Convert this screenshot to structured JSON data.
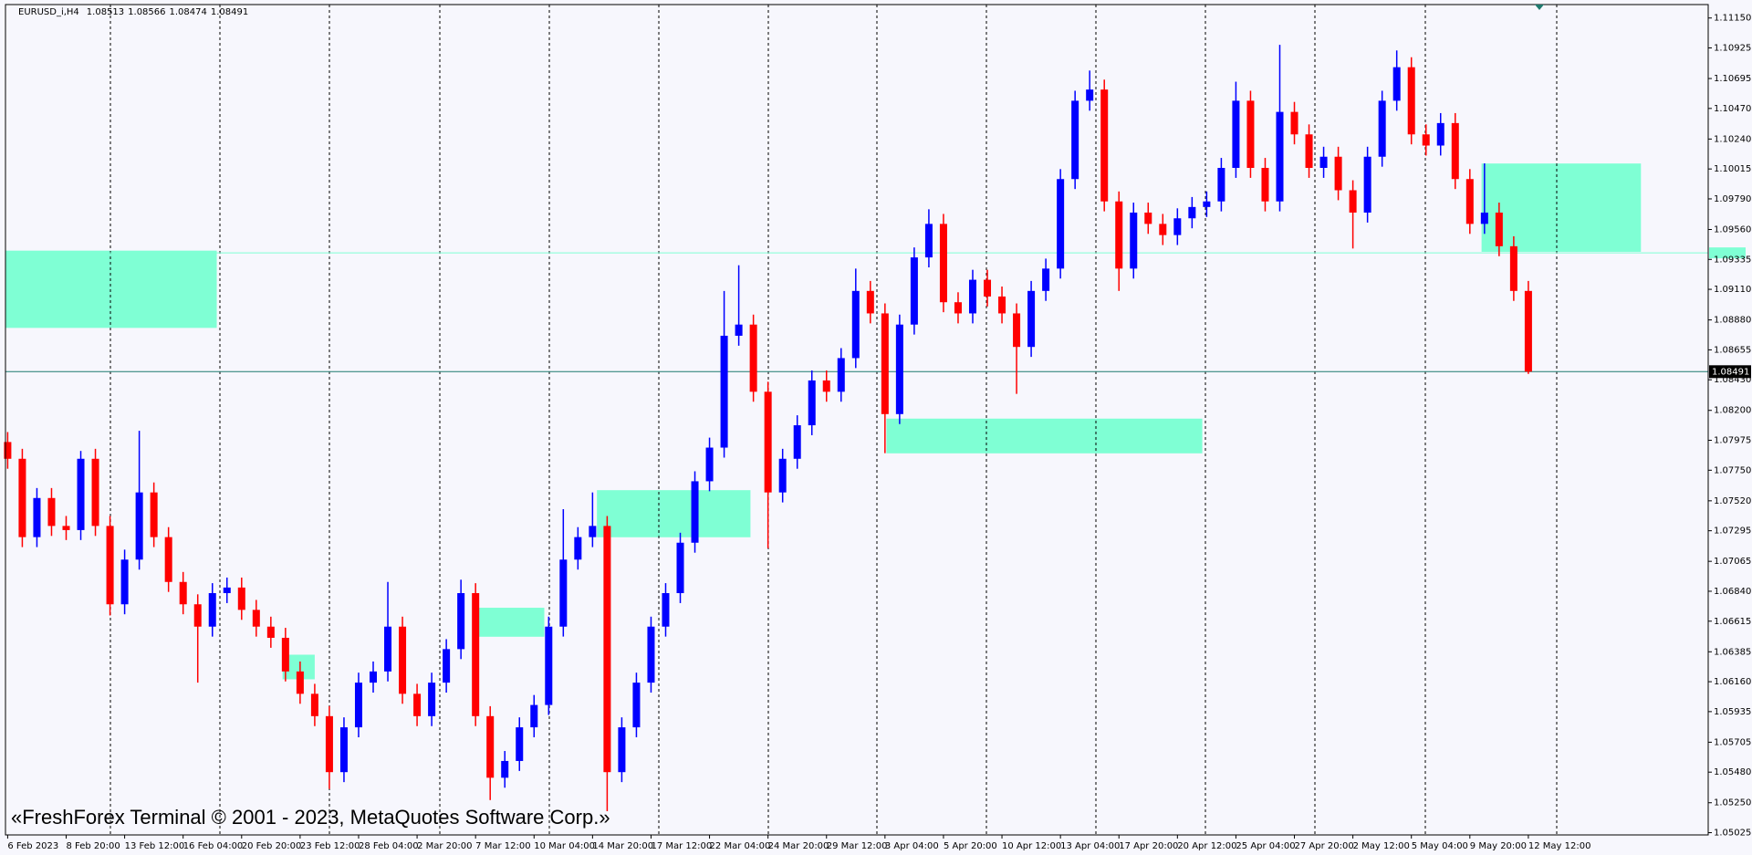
{
  "chart_data": {
    "type": "candlestick",
    "title": "EURUSD_i,H4",
    "header_values": [
      1.08513,
      1.08566,
      1.08474,
      1.08491
    ],
    "up_color": "#0000ff",
    "down_color": "#ff0000",
    "xlim": [
      -0.15,
      116.3
    ],
    "ylim": [
      1.05008,
      1.11251
    ],
    "open": [
      1.07962,
      1.07836,
      1.07247,
      1.07541,
      1.07331,
      1.073,
      1.07836,
      1.07331,
      1.06742,
      1.07078,
      1.07583,
      1.07247,
      1.0691,
      1.06742,
      1.06574,
      1.06826,
      1.06868,
      1.067,
      1.06574,
      1.0649,
      1.06237,
      1.06069,
      1.05901,
      1.0548,
      1.05817,
      1.06153,
      1.06237,
      1.06574,
      1.06069,
      1.05901,
      1.06153,
      1.06405,
      1.06826,
      1.05901,
      1.05438,
      1.05564,
      1.05817,
      1.05985,
      1.06574,
      1.07078,
      1.07247,
      1.07331,
      1.0548,
      1.05817,
      1.06153,
      1.06574,
      1.06826,
      1.07205,
      1.07667,
      1.0792,
      1.08761,
      1.08845,
      1.0834,
      1.07583,
      1.07836,
      1.08088,
      1.08425,
      1.0834,
      1.08593,
      1.09098,
      1.08929,
      1.08172,
      1.08845,
      1.0935,
      1.09602,
      1.09013,
      1.08929,
      1.09182,
      1.09056,
      1.08929,
      1.08677,
      1.09098,
      1.09266,
      1.09939,
      1.10528,
      1.10612,
      1.09771,
      1.09266,
      1.09687,
      1.09602,
      1.09518,
      1.09644,
      1.09729,
      1.09771,
      1.10023,
      1.10528,
      1.10023,
      1.09771,
      1.10444,
      1.10275,
      1.10023,
      1.10107,
      1.09855,
      1.09687,
      1.10107,
      1.10528,
      1.1078,
      1.10275,
      1.10191,
      1.1036,
      1.09939,
      1.09602,
      1.09687,
      1.09434,
      1.09098
    ],
    "high": [
      1.08037,
      1.07911,
      1.07616,
      1.07616,
      1.07406,
      1.07895,
      1.07911,
      1.07406,
      1.07153,
      1.08046,
      1.07658,
      1.07322,
      1.06985,
      1.06817,
      1.06901,
      1.06943,
      1.06943,
      1.06775,
      1.06649,
      1.06565,
      1.06312,
      1.06144,
      1.05976,
      1.05892,
      1.06228,
      1.06312,
      1.0691,
      1.06649,
      1.06144,
      1.06228,
      1.0648,
      1.06927,
      1.06901,
      1.05976,
      1.05639,
      1.05892,
      1.0606,
      1.06649,
      1.07457,
      1.07322,
      1.07583,
      1.07406,
      1.05892,
      1.06228,
      1.06649,
      1.06901,
      1.0728,
      1.07742,
      1.07995,
      1.09098,
      1.09291,
      1.0892,
      1.08415,
      1.07911,
      1.08163,
      1.085,
      1.085,
      1.08668,
      1.09266,
      1.09173,
      1.09004,
      1.0892,
      1.09425,
      1.09712,
      1.09677,
      1.09088,
      1.09257,
      1.09257,
      1.09131,
      1.09004,
      1.09173,
      1.09341,
      1.10014,
      1.10603,
      1.10755,
      1.10687,
      1.09846,
      1.09762,
      1.09762,
      1.09677,
      1.09719,
      1.09804,
      1.09846,
      1.10098,
      1.10671,
      1.10603,
      1.10098,
      1.10948,
      1.10519,
      1.1035,
      1.10182,
      1.10182,
      1.0993,
      1.10182,
      1.10603,
      1.10906,
      1.10855,
      1.1035,
      1.10435,
      1.10435,
      1.10014,
      1.10057,
      1.09762,
      1.09509,
      1.09173
    ],
    "low": [
      1.07761,
      1.07172,
      1.07172,
      1.07256,
      1.07225,
      1.07225,
      1.07256,
      1.06658,
      1.06667,
      1.07003,
      1.07172,
      1.06835,
      1.06667,
      1.06153,
      1.06499,
      1.06751,
      1.06625,
      1.06499,
      1.06415,
      1.06162,
      1.05994,
      1.05826,
      1.05354,
      1.05405,
      1.05742,
      1.06078,
      1.06162,
      1.05994,
      1.05826,
      1.05826,
      1.06078,
      1.0633,
      1.05826,
      1.0527,
      1.05363,
      1.05489,
      1.05742,
      1.0591,
      1.06499,
      1.07003,
      1.07172,
      1.05186,
      1.05405,
      1.05742,
      1.06078,
      1.06499,
      1.06751,
      1.0713,
      1.07592,
      1.07845,
      1.08686,
      1.08265,
      1.07163,
      1.07508,
      1.07761,
      1.08013,
      1.08265,
      1.08265,
      1.08518,
      1.08854,
      1.07878,
      1.08097,
      1.0877,
      1.09275,
      1.08938,
      1.08854,
      1.08854,
      1.08981,
      1.08854,
      1.08324,
      1.08602,
      1.09023,
      1.09191,
      1.09864,
      1.10453,
      1.09696,
      1.09098,
      1.09191,
      1.09527,
      1.09443,
      1.09443,
      1.09569,
      1.09654,
      1.09696,
      1.09948,
      1.09948,
      1.09696,
      1.09696,
      1.102,
      1.09948,
      1.09948,
      1.0978,
      1.09417,
      1.09612,
      1.10032,
      1.10453,
      1.102,
      1.10116,
      1.10116,
      1.09864,
      1.09527,
      1.09527,
      1.09359,
      1.09023,
      1.08474
    ],
    "close": [
      1.07836,
      1.07247,
      1.07541,
      1.07331,
      1.073,
      1.07836,
      1.07331,
      1.06742,
      1.07078,
      1.07583,
      1.07247,
      1.0691,
      1.06742,
      1.06574,
      1.06826,
      1.06868,
      1.067,
      1.06574,
      1.0649,
      1.06237,
      1.06069,
      1.05901,
      1.0548,
      1.05817,
      1.06153,
      1.06237,
      1.06574,
      1.06069,
      1.05901,
      1.06153,
      1.06405,
      1.06826,
      1.05901,
      1.05438,
      1.05564,
      1.05817,
      1.05985,
      1.06574,
      1.07078,
      1.07247,
      1.07331,
      1.0548,
      1.05817,
      1.06153,
      1.06574,
      1.06826,
      1.07205,
      1.07667,
      1.0792,
      1.08761,
      1.08845,
      1.0834,
      1.07583,
      1.07836,
      1.08088,
      1.08425,
      1.0834,
      1.08593,
      1.09098,
      1.08929,
      1.08172,
      1.08845,
      1.0935,
      1.09602,
      1.09013,
      1.08929,
      1.09182,
      1.09056,
      1.08929,
      1.08677,
      1.09098,
      1.09266,
      1.09939,
      1.10528,
      1.10612,
      1.09771,
      1.09266,
      1.09687,
      1.09602,
      1.09518,
      1.09644,
      1.09729,
      1.09771,
      1.10023,
      1.10528,
      1.10023,
      1.09771,
      1.10444,
      1.10275,
      1.10023,
      1.10107,
      1.09855,
      1.09687,
      1.10107,
      1.10528,
      1.1078,
      1.10275,
      1.10191,
      1.1036,
      1.09939,
      1.09602,
      1.09687,
      1.09434,
      1.09098,
      1.08491
    ],
    "xticks": [
      {
        "value": 0,
        "label": "6 Feb 2023"
      },
      {
        "value": 4,
        "label": "8 Feb 20:00"
      },
      {
        "value": 8,
        "label": "13 Feb 12:00"
      },
      {
        "value": 12,
        "label": "16 Feb 04:00"
      },
      {
        "value": 16,
        "label": "20 Feb 20:00"
      },
      {
        "value": 20,
        "label": "23 Feb 12:00"
      },
      {
        "value": 24,
        "label": "28 Feb 04:00"
      },
      {
        "value": 28,
        "label": "2 Mar 20:00"
      },
      {
        "value": 32,
        "label": "7 Mar 12:00"
      },
      {
        "value": 36,
        "label": "10 Mar 04:00"
      },
      {
        "value": 40,
        "label": "14 Mar 20:00"
      },
      {
        "value": 44,
        "label": "17 Mar 12:00"
      },
      {
        "value": 48,
        "label": "22 Mar 04:00"
      },
      {
        "value": 52,
        "label": "24 Mar 20:00"
      },
      {
        "value": 56,
        "label": "29 Mar 12:00"
      },
      {
        "value": 60,
        "label": "3 Apr 04:00"
      },
      {
        "value": 64,
        "label": "5 Apr 20:00"
      },
      {
        "value": 68,
        "label": "10 Apr 12:00"
      },
      {
        "value": 72,
        "label": "13 Apr 04:00"
      },
      {
        "value": 76,
        "label": "17 Apr 20:00"
      },
      {
        "value": 80,
        "label": "20 Apr 12:00"
      },
      {
        "value": 84,
        "label": "25 Apr 04:00"
      },
      {
        "value": 88,
        "label": "27 Apr 20:00"
      },
      {
        "value": 92,
        "label": "2 May 12:00"
      },
      {
        "value": 96,
        "label": "5 May 04:00"
      },
      {
        "value": 100,
        "label": "9 May 20:00"
      },
      {
        "value": 104,
        "label": "12 May 12:00"
      }
    ],
    "yticks": [
      {
        "value": 1.1115,
        "label": "1.11150"
      },
      {
        "value": 1.10925,
        "label": "1.10925"
      },
      {
        "value": 1.10695,
        "label": "1.10695"
      },
      {
        "value": 1.1047,
        "label": "1.10470"
      },
      {
        "value": 1.1024,
        "label": "1.10240"
      },
      {
        "value": 1.10015,
        "label": "1.10015"
      },
      {
        "value": 1.0979,
        "label": "1.09790"
      },
      {
        "value": 1.0956,
        "label": "1.09560"
      },
      {
        "value": 1.09335,
        "label": "1.09335"
      },
      {
        "value": 1.0911,
        "label": "1.09110"
      },
      {
        "value": 1.0888,
        "label": "1.08880"
      },
      {
        "value": 1.08655,
        "label": "1.08655"
      },
      {
        "value": 1.0843,
        "label": "1.08430"
      },
      {
        "value": 1.082,
        "label": "1.08200"
      },
      {
        "value": 1.07975,
        "label": "1.07975"
      },
      {
        "value": 1.0775,
        "label": "1.07750"
      },
      {
        "value": 1.0752,
        "label": "1.07520"
      },
      {
        "value": 1.07295,
        "label": "1.07295"
      },
      {
        "value": 1.07065,
        "label": "1.07065"
      },
      {
        "value": 1.0684,
        "label": "1.06840"
      },
      {
        "value": 1.06615,
        "label": "1.06615"
      },
      {
        "value": 1.06385,
        "label": "1.06385"
      },
      {
        "value": 1.0616,
        "label": "1.06160"
      },
      {
        "value": 1.05935,
        "label": "1.05935"
      },
      {
        "value": 1.05705,
        "label": "1.05705"
      },
      {
        "value": 1.0548,
        "label": "1.05480"
      },
      {
        "value": 1.0525,
        "label": "1.05250"
      },
      {
        "value": 1.05025,
        "label": "1.05025"
      }
    ],
    "current_price": 1.08491,
    "current_price_color": "#1f7a6e",
    "level": 1.09384,
    "level_color": "#7fffd4",
    "zone_color": "#7fffd4",
    "zones": [
      {
        "x": [
          -0.15,
          14.3
        ],
        "y": [
          1.0882,
          1.09401
        ]
      },
      {
        "x": [
          18.8,
          21.0
        ],
        "y": [
          1.06178,
          1.06363
        ]
      },
      {
        "x": [
          31.9,
          36.7
        ],
        "y": [
          1.06498,
          1.06716
        ]
      },
      {
        "x": [
          40.3,
          50.8
        ],
        "y": [
          1.07246,
          1.076
        ]
      },
      {
        "x": [
          60.1,
          81.7
        ],
        "y": [
          1.07877,
          1.08138
        ]
      },
      {
        "x": [
          100.8,
          111.7
        ],
        "y": [
          1.09392,
          1.10056
        ]
      }
    ]
  },
  "watermark": "«FreshForex Terminal © 2001 - 2023, MetaQuotes Software Corp.»"
}
